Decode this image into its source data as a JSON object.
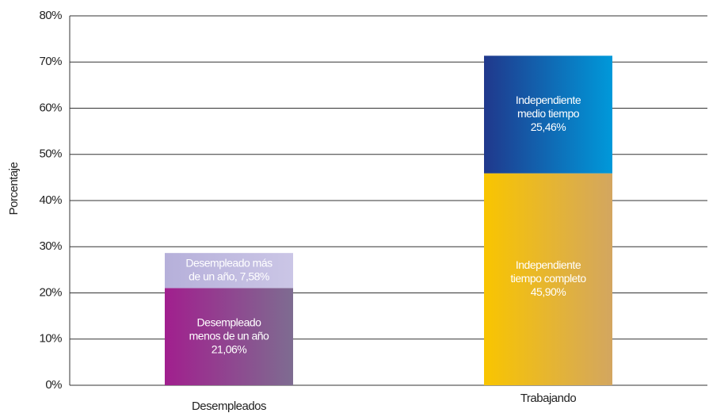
{
  "chart_data": {
    "type": "stacked_bar",
    "ylabel": "Porcentaje",
    "categories": [
      "Desempleados",
      "Trabajando"
    ],
    "series": [
      {
        "label_lines": [
          "Desempleado",
          "menos de un año",
          "21,06%"
        ],
        "values": [
          21.06,
          null
        ],
        "colors": [
          "#a11f8e",
          "#7e6c91"
        ]
      },
      {
        "label_lines": [
          "Desempleado más",
          "de un año, 7,58%"
        ],
        "values": [
          7.58,
          null
        ],
        "colors": [
          "#b6b0da",
          "#cbc6e6"
        ]
      },
      {
        "label_lines": [
          "Independiente",
          "tiempo completo",
          "45,90%"
        ],
        "values": [
          null,
          45.9
        ],
        "colors": [
          "#f9c500",
          "#d3a660"
        ]
      },
      {
        "label_lines": [
          "Independiente",
          "medio tiempo",
          "25,46%"
        ],
        "values": [
          null,
          25.46
        ],
        "colors": [
          "#20388c",
          "#0099da"
        ]
      }
    ],
    "ylim": [
      0,
      80
    ],
    "yticks": [
      {
        "value": 0,
        "label": "0%"
      },
      {
        "value": 10,
        "label": "10%"
      },
      {
        "value": 20,
        "label": "20%"
      },
      {
        "value": 30,
        "label": "30%"
      },
      {
        "value": 40,
        "label": "40%"
      },
      {
        "value": 50,
        "label": "50%"
      },
      {
        "value": 60,
        "label": "60%"
      },
      {
        "value": 70,
        "label": "70%"
      },
      {
        "value": 80,
        "label": "80%"
      }
    ],
    "grid": true
  }
}
